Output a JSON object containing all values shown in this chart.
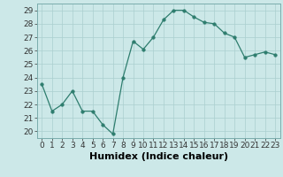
{
  "x": [
    0,
    1,
    2,
    3,
    4,
    5,
    6,
    7,
    8,
    9,
    10,
    11,
    12,
    13,
    14,
    15,
    16,
    17,
    18,
    19,
    20,
    21,
    22,
    23
  ],
  "y": [
    23.5,
    21.5,
    22.0,
    23.0,
    21.5,
    21.5,
    20.5,
    19.8,
    24.0,
    26.7,
    26.1,
    27.0,
    28.3,
    29.0,
    29.0,
    28.5,
    28.1,
    28.0,
    27.3,
    27.0,
    25.5,
    25.7,
    25.9,
    25.7
  ],
  "line_color": "#2e7d6e",
  "marker_color": "#2e7d6e",
  "bg_color": "#cce8e8",
  "grid_color": "#aacfcf",
  "xlabel": "Humidex (Indice chaleur)",
  "xlim": [
    -0.5,
    23.5
  ],
  "ylim": [
    19.5,
    29.5
  ],
  "yticks": [
    20,
    21,
    22,
    23,
    24,
    25,
    26,
    27,
    28,
    29
  ],
  "xticks": [
    0,
    1,
    2,
    3,
    4,
    5,
    6,
    7,
    8,
    9,
    10,
    11,
    12,
    13,
    14,
    15,
    16,
    17,
    18,
    19,
    20,
    21,
    22,
    23
  ],
  "tick_label_fontsize": 6.5,
  "xlabel_fontsize": 8.0
}
